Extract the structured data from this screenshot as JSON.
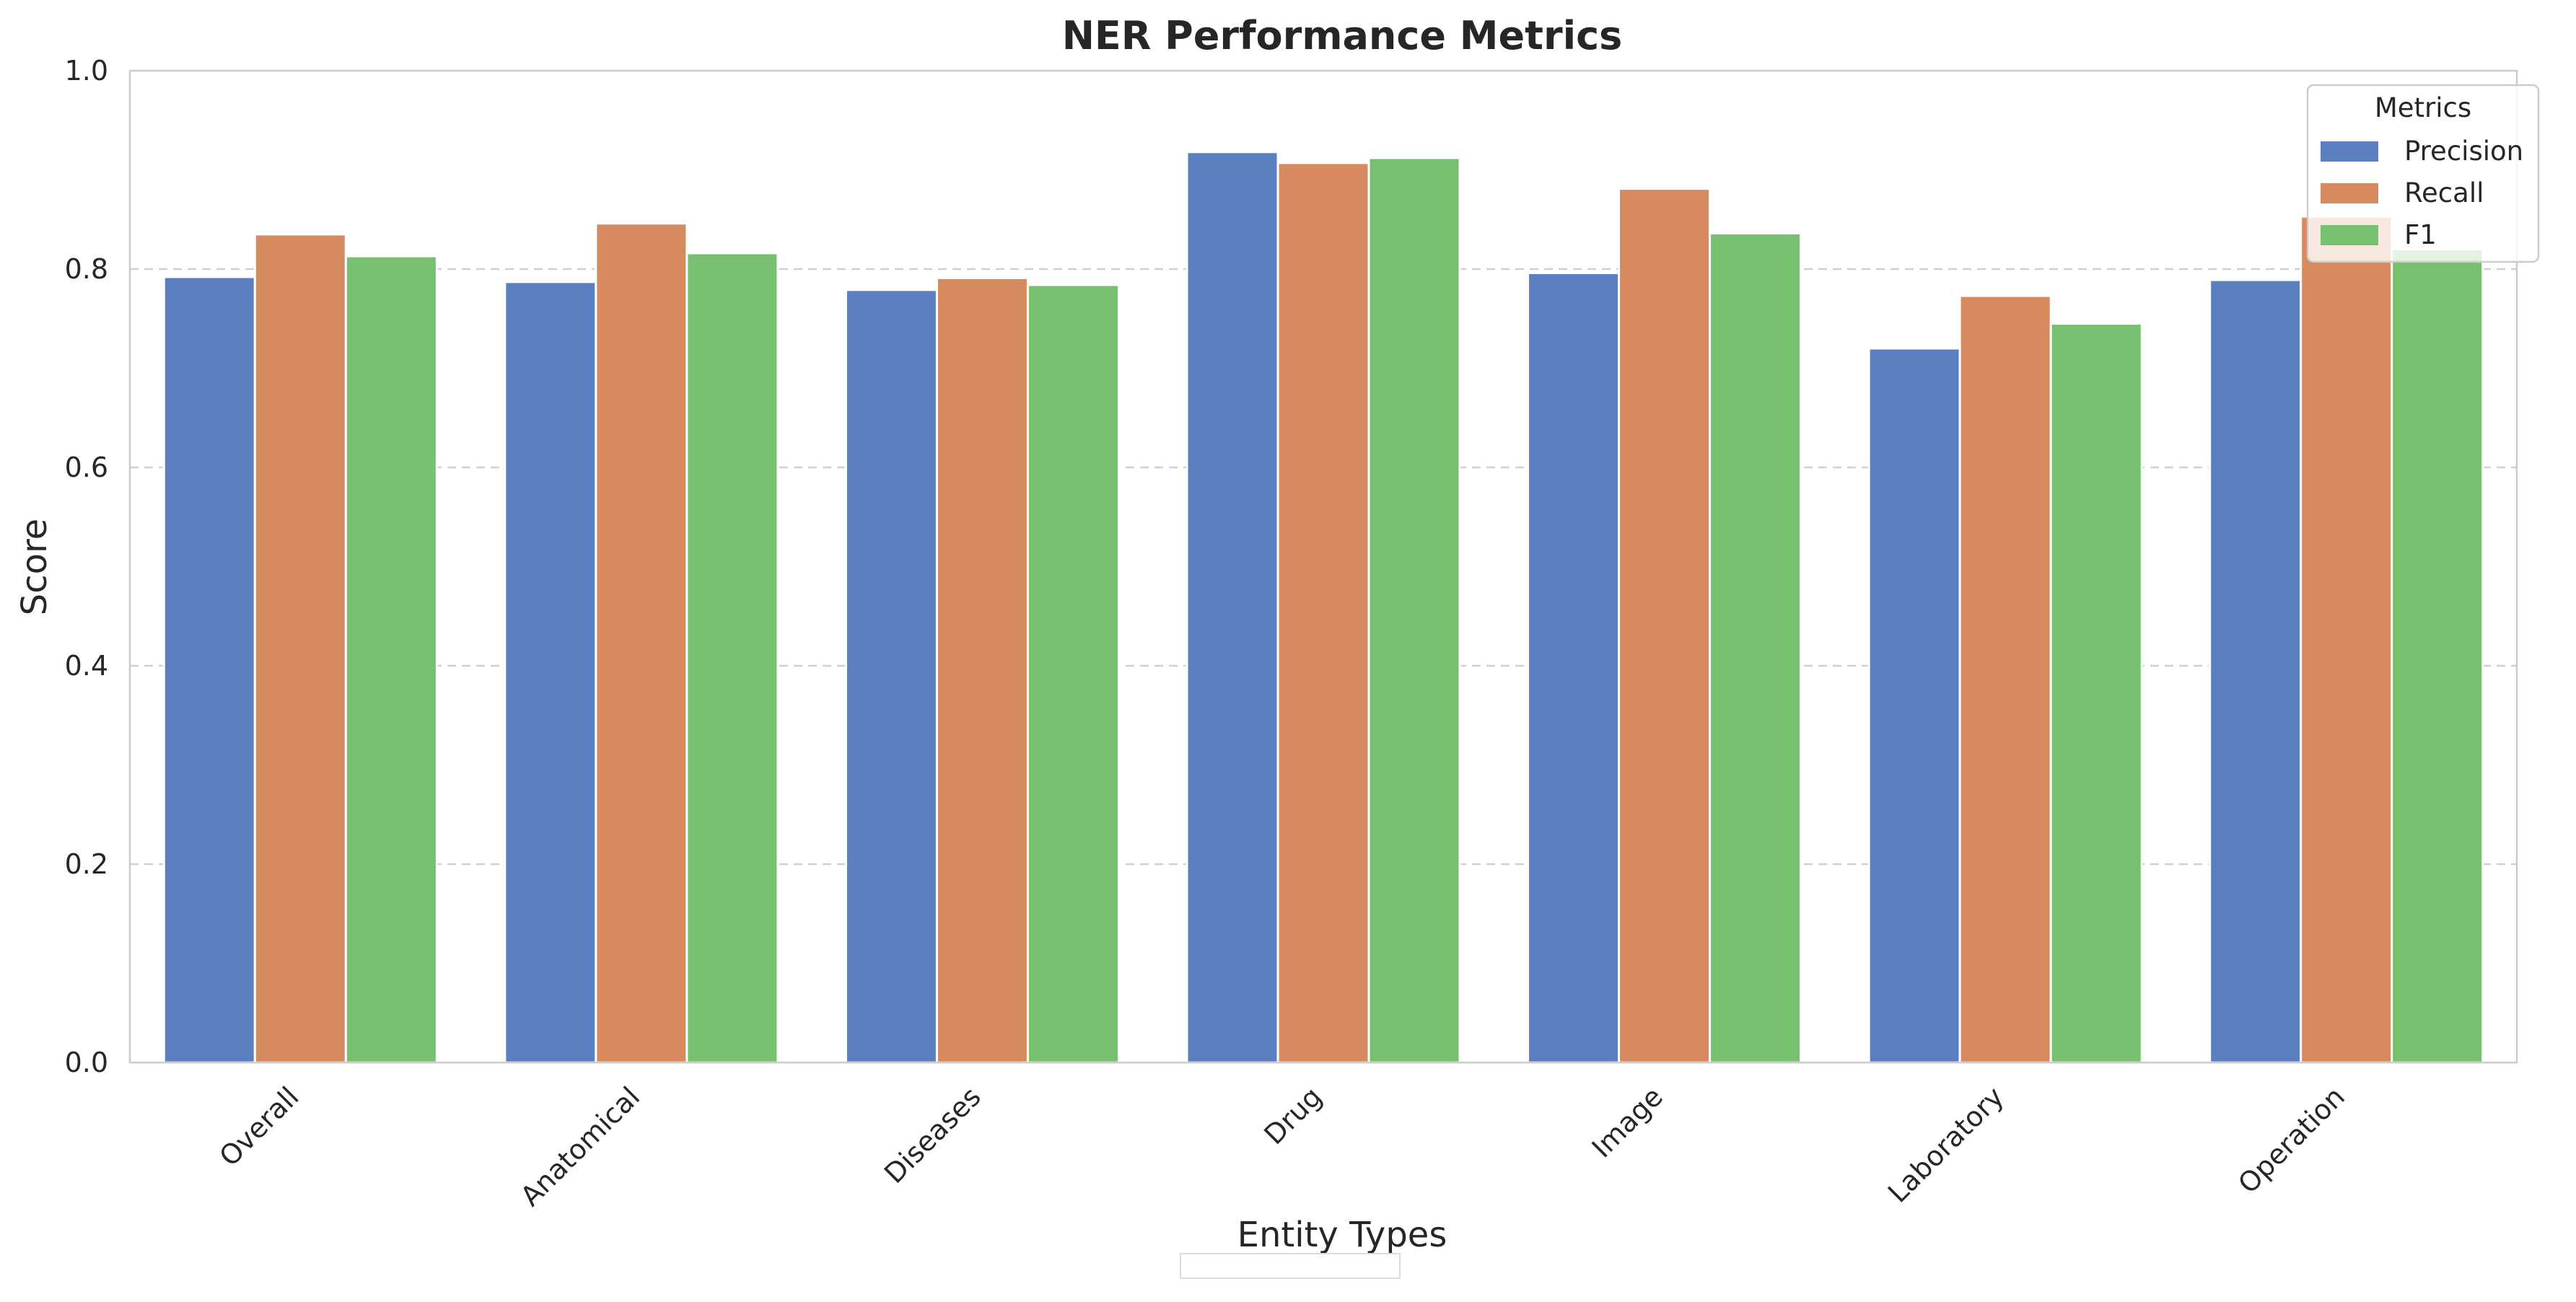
{
  "chart_data": {
    "type": "bar",
    "title": "NER Performance Metrics",
    "xlabel": "Entity Types",
    "ylabel": "Score",
    "ylim": [
      0,
      1.0
    ],
    "yticks": [
      "0.0",
      "0.2",
      "0.4",
      "0.6",
      "0.8",
      "1.0"
    ],
    "grid": "horizontal dashed",
    "categories": [
      "Overall",
      "Anatomical",
      "Diseases",
      "Drug",
      "Image",
      "Laboratory",
      "Operation"
    ],
    "series": [
      {
        "name": "Precision",
        "color": "#5b7fc0",
        "values": [
          0.792,
          0.787,
          0.779,
          0.918,
          0.796,
          0.72,
          0.789
        ]
      },
      {
        "name": "Recall",
        "color": "#d88a5f",
        "values": [
          0.835,
          0.846,
          0.791,
          0.907,
          0.881,
          0.773,
          0.853
        ]
      },
      {
        "name": "F1",
        "color": "#76c06f",
        "values": [
          0.813,
          0.816,
          0.784,
          0.912,
          0.836,
          0.745,
          0.82
        ]
      }
    ],
    "legend": {
      "title": "Metrics",
      "placement": "top-right"
    }
  }
}
